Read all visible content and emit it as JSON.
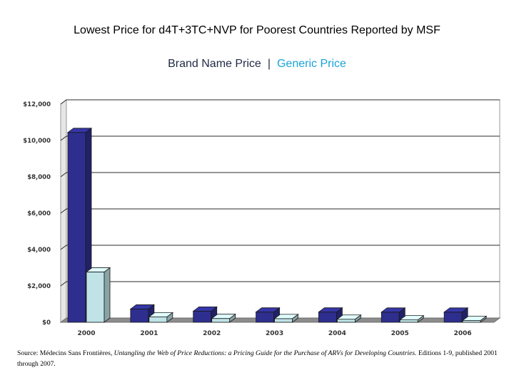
{
  "title": "Lowest Price for d4T+3TC+NVP for Poorest Countries Reported by MSF",
  "legend": {
    "brand_label": "Brand Name Price",
    "separator": "|",
    "generic_label": "Generic Price",
    "brand_color": "#2e2e8f",
    "generic_color": "#bfe3e6"
  },
  "source": {
    "prefix": "Source: Médecins Sans Frontières, ",
    "italic": "Untangling the Web of Price Reductions: a Pricing Guide for the Purchase of ARVs for Developing Countries.",
    "suffix": " Editions 1-9, published 2001 through 2007."
  },
  "chart_data": {
    "type": "bar",
    "categories": [
      "2000",
      "2001",
      "2002",
      "2003",
      "2004",
      "2005",
      "2006"
    ],
    "series": [
      {
        "name": "Brand Name Price",
        "values": [
          10439,
          727,
          612,
          562,
          562,
          556,
          556
        ],
        "color": "#2e2e8f"
      },
      {
        "name": "Generic Price",
        "values": [
          2767,
          295,
          209,
          201,
          168,
          132,
          99
        ],
        "color": "#bfe3e6"
      }
    ],
    "yticks": [
      "$0",
      "$2,000",
      "$4,000",
      "$6,000",
      "$8,000",
      "$10,000",
      "$12,000"
    ],
    "ylim": [
      0,
      12000
    ],
    "grid": true,
    "style": "3d"
  }
}
